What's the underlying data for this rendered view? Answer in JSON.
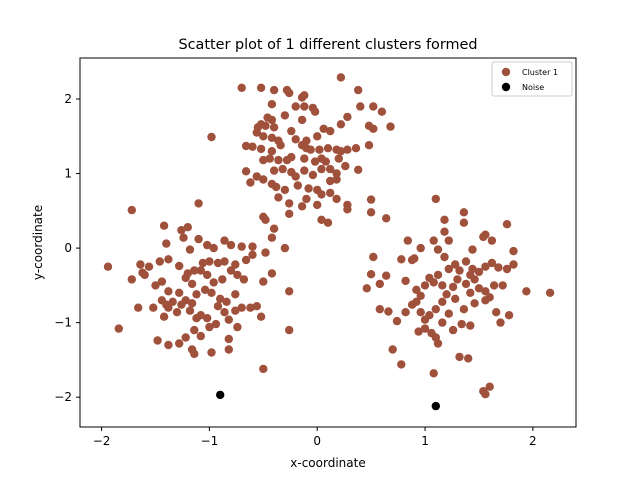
{
  "chart_data": {
    "type": "scatter",
    "title": "Scatter plot of 1 different clusters formed",
    "xlabel": "x-coordinate",
    "ylabel": "y-coordinate",
    "xlim": [
      -2.2,
      2.4
    ],
    "ylim": [
      -2.4,
      2.55
    ],
    "xticks": [
      -2,
      -1,
      0,
      1,
      2
    ],
    "yticks": [
      -2,
      -1,
      0,
      1,
      2
    ],
    "xtick_labels": [
      "−2",
      "−1",
      "0",
      "1",
      "2"
    ],
    "ytick_labels": [
      "−2",
      "−1",
      "0",
      "1",
      "2"
    ],
    "grid": false,
    "legend_position": "top-right",
    "series": [
      {
        "name": "Cluster 1",
        "color": "#a0513c",
        "points": [
          [
            -0.7,
            2.15
          ],
          [
            -0.52,
            2.15
          ],
          [
            -0.4,
            2.12
          ],
          [
            -0.28,
            2.12
          ],
          [
            -0.26,
            2.08
          ],
          [
            -0.14,
            2.02
          ],
          [
            -0.12,
            2.05
          ],
          [
            0.22,
            2.29
          ],
          [
            0.38,
            2.12
          ],
          [
            -0.42,
            1.93
          ],
          [
            -0.2,
            1.9
          ],
          [
            -0.12,
            1.9
          ],
          [
            -0.04,
            1.88
          ],
          [
            -0.02,
            1.83
          ],
          [
            0.4,
            1.9
          ],
          [
            0.52,
            1.9
          ],
          [
            0.6,
            1.83
          ],
          [
            0.68,
            1.63
          ],
          [
            -0.46,
            1.75
          ],
          [
            -0.42,
            1.72
          ],
          [
            -0.3,
            1.78
          ],
          [
            -0.14,
            1.72
          ],
          [
            -0.52,
            1.66
          ],
          [
            -0.55,
            1.62
          ],
          [
            -0.48,
            1.64
          ],
          [
            -0.4,
            1.62
          ],
          [
            -0.24,
            1.57
          ],
          [
            -0.56,
            1.55
          ],
          [
            -0.5,
            1.5
          ],
          [
            -0.42,
            1.48
          ],
          [
            -0.36,
            1.44
          ],
          [
            -0.2,
            1.46
          ],
          [
            -0.1,
            1.44
          ],
          [
            0.0,
            1.5
          ],
          [
            0.06,
            1.6
          ],
          [
            0.12,
            1.57
          ],
          [
            0.22,
            1.66
          ],
          [
            0.28,
            1.76
          ],
          [
            0.48,
            1.64
          ],
          [
            0.52,
            1.6
          ],
          [
            -0.98,
            1.49
          ],
          [
            -0.66,
            1.37
          ],
          [
            -0.6,
            1.36
          ],
          [
            -0.52,
            1.33
          ],
          [
            -0.42,
            1.3
          ],
          [
            -0.34,
            1.38
          ],
          [
            -0.14,
            1.38
          ],
          [
            -0.1,
            1.34
          ],
          [
            -0.06,
            1.32
          ],
          [
            0.02,
            1.32
          ],
          [
            0.1,
            1.34
          ],
          [
            0.18,
            1.32
          ],
          [
            0.22,
            1.3
          ],
          [
            0.28,
            1.32
          ],
          [
            0.48,
            1.38
          ],
          [
            0.36,
            1.34
          ],
          [
            -0.5,
            1.18
          ],
          [
            -0.44,
            1.2
          ],
          [
            -0.36,
            1.18
          ],
          [
            -0.28,
            1.18
          ],
          [
            -0.24,
            1.22
          ],
          [
            -0.12,
            1.2
          ],
          [
            -0.02,
            1.16
          ],
          [
            0.04,
            1.2
          ],
          [
            0.08,
            1.16
          ],
          [
            0.2,
            1.2
          ],
          [
            0.26,
            1.1
          ],
          [
            0.38,
            1.05
          ],
          [
            -0.66,
            1.03
          ],
          [
            -0.56,
            0.96
          ],
          [
            -0.5,
            0.92
          ],
          [
            -0.4,
            1.04
          ],
          [
            -0.32,
            1.06
          ],
          [
            -0.24,
            1.02
          ],
          [
            -0.2,
            0.96
          ],
          [
            -0.12,
            1.04
          ],
          [
            -0.04,
            0.98
          ],
          [
            0.04,
            1.06
          ],
          [
            0.12,
            1.06
          ],
          [
            0.18,
            1.0
          ],
          [
            -0.42,
            0.86
          ],
          [
            -0.38,
            0.82
          ],
          [
            -0.3,
            0.78
          ],
          [
            -0.18,
            0.84
          ],
          [
            -0.08,
            0.8
          ],
          [
            0.0,
            0.78
          ],
          [
            0.12,
            0.9
          ],
          [
            0.18,
            0.92
          ],
          [
            -0.62,
            0.88
          ],
          [
            -0.36,
            0.68
          ],
          [
            -0.26,
            0.6
          ],
          [
            -0.1,
            0.66
          ],
          [
            0.04,
            0.72
          ],
          [
            0.12,
            0.74
          ],
          [
            0.18,
            0.66
          ],
          [
            0.28,
            0.58
          ],
          [
            0.28,
            0.52
          ],
          [
            -0.26,
            0.46
          ],
          [
            -0.14,
            0.56
          ],
          [
            0.0,
            0.58
          ],
          [
            0.04,
            0.38
          ],
          [
            0.1,
            0.34
          ],
          [
            -0.5,
            0.42
          ],
          [
            -0.48,
            0.38
          ],
          [
            -0.4,
            0.26
          ],
          [
            -0.42,
            0.14
          ],
          [
            -0.3,
            0.0
          ],
          [
            0.5,
            0.65
          ],
          [
            0.5,
            0.48
          ],
          [
            0.64,
            0.4
          ],
          [
            -1.72,
            0.51
          ],
          [
            -1.1,
            0.6
          ],
          [
            -1.42,
            0.3
          ],
          [
            -1.26,
            0.24
          ],
          [
            -1.2,
            0.28
          ],
          [
            -1.24,
            0.14
          ],
          [
            -1.1,
            0.12
          ],
          [
            -0.86,
            0.1
          ],
          [
            -0.8,
            0.04
          ],
          [
            -0.7,
            0.02
          ],
          [
            -0.6,
            0.02
          ],
          [
            -1.4,
            0.06
          ],
          [
            -1.02,
            0.04
          ],
          [
            -0.96,
            0.0
          ],
          [
            -1.18,
            -0.02
          ],
          [
            -1.94,
            -0.25
          ],
          [
            -1.64,
            -0.22
          ],
          [
            -1.62,
            -0.33
          ],
          [
            -1.56,
            -0.25
          ],
          [
            -1.46,
            -0.18
          ],
          [
            -1.38,
            -0.15
          ],
          [
            -1.28,
            -0.24
          ],
          [
            -1.2,
            -0.34
          ],
          [
            -1.14,
            -0.3
          ],
          [
            -1.06,
            -0.2
          ],
          [
            -1.0,
            -0.18
          ],
          [
            -0.92,
            -0.2
          ],
          [
            -0.86,
            -0.18
          ],
          [
            -0.76,
            -0.22
          ],
          [
            -0.66,
            -0.16
          ],
          [
            -0.6,
            -0.09
          ],
          [
            -0.48,
            -0.06
          ],
          [
            -0.42,
            -0.34
          ],
          [
            -0.5,
            -0.45
          ],
          [
            -1.6,
            -0.36
          ],
          [
            -1.72,
            -0.42
          ],
          [
            -1.5,
            -0.5
          ],
          [
            -1.44,
            -0.45
          ],
          [
            -1.38,
            -0.58
          ],
          [
            -1.22,
            -0.4
          ],
          [
            -1.16,
            -0.48
          ],
          [
            -1.08,
            -0.3
          ],
          [
            -1.02,
            -0.36
          ],
          [
            -0.96,
            -0.46
          ],
          [
            -0.88,
            -0.42
          ],
          [
            -0.8,
            -0.3
          ],
          [
            -0.74,
            -0.36
          ],
          [
            -0.68,
            -0.42
          ],
          [
            -0.26,
            -0.58
          ],
          [
            -1.84,
            -1.08
          ],
          [
            -1.66,
            -0.8
          ],
          [
            -1.52,
            -0.8
          ],
          [
            -1.44,
            -0.7
          ],
          [
            -1.4,
            -0.76
          ],
          [
            -1.34,
            -0.72
          ],
          [
            -1.28,
            -0.6
          ],
          [
            -1.22,
            -0.7
          ],
          [
            -1.16,
            -0.74
          ],
          [
            -1.12,
            -0.62
          ],
          [
            -1.04,
            -0.56
          ],
          [
            -0.98,
            -0.6
          ],
          [
            -0.9,
            -0.68
          ],
          [
            -0.84,
            -0.72
          ],
          [
            -0.76,
            -0.62
          ],
          [
            -0.7,
            -0.8
          ],
          [
            -1.42,
            -0.92
          ],
          [
            -1.38,
            -0.8
          ],
          [
            -1.3,
            -0.86
          ],
          [
            -1.26,
            -0.76
          ],
          [
            -1.18,
            -0.84
          ],
          [
            -1.12,
            -0.94
          ],
          [
            -1.08,
            -0.9
          ],
          [
            -1.02,
            -0.94
          ],
          [
            -0.92,
            -0.78
          ],
          [
            -0.86,
            -0.86
          ],
          [
            -0.82,
            -0.96
          ],
          [
            -0.76,
            -0.84
          ],
          [
            -0.62,
            -0.8
          ],
          [
            -0.56,
            -0.78
          ],
          [
            -1.48,
            -1.24
          ],
          [
            -1.38,
            -1.3
          ],
          [
            -1.28,
            -1.28
          ],
          [
            -1.22,
            -1.2
          ],
          [
            -1.14,
            -1.1
          ],
          [
            -1.08,
            -1.18
          ],
          [
            -1.0,
            -1.06
          ],
          [
            -0.94,
            -1.02
          ],
          [
            -0.82,
            -1.22
          ],
          [
            -0.74,
            -1.06
          ],
          [
            -0.82,
            -1.36
          ],
          [
            -0.98,
            -1.4
          ],
          [
            -1.16,
            -1.36
          ],
          [
            -1.14,
            -1.42
          ],
          [
            -0.52,
            -0.92
          ],
          [
            -0.26,
            -1.1
          ],
          [
            -0.5,
            -1.62
          ],
          [
            0.52,
            -0.12
          ],
          [
            0.88,
            -0.16
          ],
          [
            0.84,
            0.1
          ],
          [
            0.96,
            0.0
          ],
          [
            1.1,
            0.66
          ],
          [
            1.18,
            0.38
          ],
          [
            1.18,
            0.22
          ],
          [
            1.22,
            0.1
          ],
          [
            1.36,
            0.48
          ],
          [
            1.36,
            0.34
          ],
          [
            1.44,
            -0.02
          ],
          [
            1.54,
            0.15
          ],
          [
            1.56,
            0.18
          ],
          [
            1.62,
            0.1
          ],
          [
            1.76,
            0.32
          ],
          [
            1.82,
            -0.04
          ],
          [
            1.82,
            -0.22
          ],
          [
            0.5,
            -0.35
          ],
          [
            0.46,
            -0.54
          ],
          [
            0.58,
            -0.48
          ],
          [
            0.64,
            -0.37
          ],
          [
            0.78,
            -0.15
          ],
          [
            0.9,
            -0.14
          ],
          [
            1.08,
            0.1
          ],
          [
            1.12,
            -0.02
          ],
          [
            1.18,
            -0.12
          ],
          [
            1.22,
            -0.28
          ],
          [
            1.28,
            -0.22
          ],
          [
            1.32,
            -0.3
          ],
          [
            1.38,
            -0.18
          ],
          [
            1.44,
            -0.28
          ],
          [
            1.5,
            -0.32
          ],
          [
            1.56,
            -0.25
          ],
          [
            1.62,
            -0.2
          ],
          [
            1.68,
            -0.26
          ],
          [
            1.76,
            -0.28
          ],
          [
            0.82,
            -0.44
          ],
          [
            0.92,
            -0.56
          ],
          [
            0.96,
            -0.64
          ],
          [
            1.0,
            -0.5
          ],
          [
            1.04,
            -0.4
          ],
          [
            1.08,
            -0.46
          ],
          [
            1.12,
            -0.36
          ],
          [
            1.16,
            -0.5
          ],
          [
            1.2,
            -0.62
          ],
          [
            1.26,
            -0.52
          ],
          [
            1.3,
            -0.42
          ],
          [
            1.38,
            -0.48
          ],
          [
            1.42,
            -0.36
          ],
          [
            1.46,
            -0.42
          ],
          [
            1.5,
            -0.54
          ],
          [
            1.56,
            -0.58
          ],
          [
            1.6,
            -0.66
          ],
          [
            1.64,
            -0.5
          ],
          [
            1.72,
            -0.5
          ],
          [
            1.94,
            -0.58
          ],
          [
            2.16,
            -0.6
          ],
          [
            0.58,
            -0.82
          ],
          [
            0.66,
            -0.85
          ],
          [
            0.74,
            -0.98
          ],
          [
            0.82,
            -0.86
          ],
          [
            0.88,
            -0.76
          ],
          [
            0.92,
            -0.72
          ],
          [
            0.96,
            -0.86
          ],
          [
            1.0,
            -0.96
          ],
          [
            1.04,
            -0.9
          ],
          [
            1.1,
            -0.82
          ],
          [
            1.16,
            -0.72
          ],
          [
            1.22,
            -0.88
          ],
          [
            1.28,
            -0.68
          ],
          [
            1.36,
            -0.82
          ],
          [
            1.42,
            -0.6
          ],
          [
            1.46,
            -0.74
          ],
          [
            1.56,
            -0.7
          ],
          [
            1.66,
            -0.86
          ],
          [
            1.7,
            -1.0
          ],
          [
            1.78,
            -0.9
          ],
          [
            0.94,
            -1.12
          ],
          [
            1.0,
            -1.08
          ],
          [
            1.06,
            -1.14
          ],
          [
            1.1,
            -1.2
          ],
          [
            1.12,
            -1.28
          ],
          [
            1.16,
            -1.0
          ],
          [
            1.26,
            -1.1
          ],
          [
            1.34,
            -1.02
          ],
          [
            1.42,
            -1.04
          ],
          [
            0.7,
            -1.36
          ],
          [
            0.78,
            -1.56
          ],
          [
            1.32,
            -1.46
          ],
          [
            1.4,
            -1.48
          ],
          [
            1.08,
            -1.68
          ],
          [
            1.54,
            -1.92
          ],
          [
            1.56,
            -1.96
          ],
          [
            1.6,
            -1.86
          ]
        ]
      },
      {
        "name": "Noise",
        "color": "#000000",
        "points": [
          [
            -0.9,
            -1.97
          ],
          [
            1.1,
            -2.12
          ]
        ]
      }
    ]
  }
}
